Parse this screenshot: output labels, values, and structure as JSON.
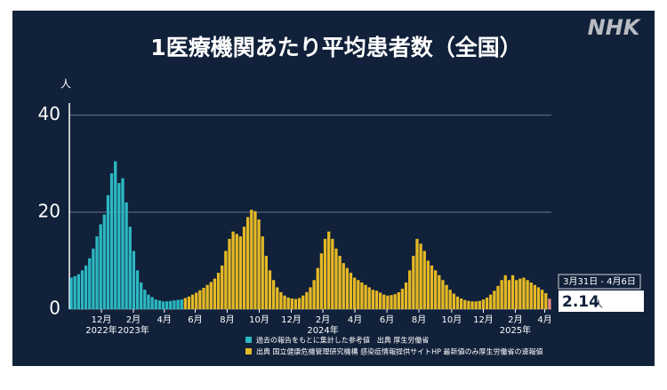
{
  "chart_data": {
    "type": "bar",
    "title": "1医療機関あたり平均患者数（全国）",
    "logo": "NHK",
    "y_unit": "人",
    "x": [
      0,
      1,
      2,
      3,
      4,
      5,
      6,
      7,
      8,
      9,
      10,
      11,
      12,
      13,
      14,
      15,
      16,
      17,
      18,
      19,
      20,
      21,
      22,
      23,
      24,
      25,
      26,
      27,
      28,
      29,
      30,
      31,
      32,
      33,
      34,
      35,
      36,
      37,
      38,
      39,
      40,
      41,
      42,
      43,
      44,
      45,
      46,
      47,
      48,
      49,
      50,
      51,
      52,
      53,
      54,
      55,
      56,
      57,
      58,
      59,
      60,
      61,
      62,
      63,
      64,
      65,
      66,
      67,
      68,
      69,
      70,
      71,
      72,
      73,
      74,
      75,
      76,
      77,
      78,
      79,
      80,
      81,
      82,
      83,
      84,
      85,
      86,
      87,
      88,
      89,
      90,
      91,
      92,
      93,
      94,
      95,
      96,
      97,
      98,
      99,
      100,
      101,
      102,
      103,
      104,
      105,
      106,
      107,
      108,
      109,
      110,
      111,
      112,
      113,
      114,
      115,
      116,
      117,
      118,
      119,
      120,
      121,
      122,
      123,
      124,
      125,
      126,
      127,
      128,
      129,
      130
    ],
    "xlim": [
      -0.5,
      130.5
    ],
    "xticks": [
      {
        "value": 8.2,
        "label": "12月"
      },
      {
        "value": 16.9,
        "label": "2月"
      },
      {
        "value": 25.3,
        "label": "4月"
      },
      {
        "value": 33.7,
        "label": "6月"
      },
      {
        "value": 42.4,
        "label": "8月"
      },
      {
        "value": 51.1,
        "label": "10月"
      },
      {
        "value": 59.8,
        "label": "12月"
      },
      {
        "value": 68.4,
        "label": "2月"
      },
      {
        "value": 77.1,
        "label": "4月"
      },
      {
        "value": 85.8,
        "label": "6月"
      },
      {
        "value": 94.5,
        "label": "8月"
      },
      {
        "value": 103.4,
        "label": "10月"
      },
      {
        "value": 112,
        "label": "12月"
      },
      {
        "value": 120.7,
        "label": "2月"
      },
      {
        "value": 128.7,
        "label": "4月"
      }
    ],
    "year_ticks": [
      {
        "value": 8.2,
        "label": "2022年"
      },
      {
        "value": 16.9,
        "label": "2023年"
      },
      {
        "value": 68.4,
        "label": "2024年"
      },
      {
        "value": 120.7,
        "label": "2025年"
      }
    ],
    "ylim": [
      0,
      42.5
    ],
    "yticks": [
      0,
      20,
      40
    ],
    "grid": true,
    "series": [
      {
        "name": "過去の報告をもとに集計した参考値　出典 厚生労働省",
        "color": "#2cb8c2",
        "values": [
          6.5,
          6.8,
          7.2,
          8,
          9,
          10.5,
          12.5,
          15,
          17.5,
          19.5,
          23.5,
          28,
          30.5,
          26,
          27,
          22,
          17,
          12,
          8,
          5.5,
          4,
          3,
          2.5,
          2,
          1.8,
          1.6,
          1.6,
          1.7,
          1.8,
          1.9,
          2,
          null,
          null,
          null,
          null,
          null,
          null,
          null,
          null,
          null,
          null,
          null,
          null,
          null,
          null,
          null,
          null,
          null,
          null,
          null,
          null,
          null,
          null,
          null,
          null,
          null,
          null,
          null,
          null,
          null,
          null,
          null,
          null,
          null,
          null,
          null,
          null,
          null,
          null,
          null,
          null,
          null,
          null,
          null,
          null,
          null,
          null,
          null,
          null,
          null,
          null,
          null,
          null,
          null,
          null,
          null,
          null,
          null,
          null,
          null,
          null,
          null,
          null,
          null,
          null,
          null,
          null,
          null,
          null,
          null,
          null,
          null,
          null,
          null,
          null,
          null,
          null,
          null,
          null,
          null,
          null,
          null,
          null,
          null,
          null,
          null,
          null,
          null,
          null,
          null,
          null,
          null,
          null,
          null,
          null,
          null,
          null,
          null,
          null,
          null,
          null
        ]
      },
      {
        "name": "出典 国立健康危機管理研究機構 感染症情報提供サイトHP 最新値のみ厚生労働省の速報値",
        "color": "#e6b925",
        "values": [
          null,
          null,
          null,
          null,
          null,
          null,
          null,
          null,
          null,
          null,
          null,
          null,
          null,
          null,
          null,
          null,
          null,
          null,
          null,
          null,
          null,
          null,
          null,
          null,
          null,
          null,
          null,
          null,
          null,
          null,
          null,
          2.3,
          2.6,
          3,
          3.4,
          3.9,
          4.4,
          5,
          5.6,
          6.3,
          7.5,
          9,
          12,
          14.5,
          16,
          15.5,
          15,
          17,
          19,
          20.5,
          20.2,
          18.5,
          15,
          11,
          8,
          6,
          4.5,
          3.5,
          2.8,
          2.4,
          2.2,
          2.1,
          2.3,
          2.8,
          3.5,
          4.5,
          6,
          8.5,
          11.5,
          14.5,
          16,
          14.5,
          12.5,
          11,
          9.5,
          8.5,
          7.5,
          6.5,
          6,
          5.5,
          5,
          4.5,
          4,
          3.8,
          3.4,
          3,
          2.8,
          2.9,
          3.1,
          3.5,
          4.2,
          5.5,
          8,
          11,
          14.5,
          13.5,
          12,
          10,
          9,
          8,
          7,
          6,
          5,
          4,
          3.2,
          2.6,
          2.2,
          1.9,
          1.7,
          1.6,
          1.6,
          1.7,
          2,
          2.4,
          3,
          3.8,
          4.8,
          6,
          7,
          6,
          7,
          6,
          6.3,
          6.5,
          6,
          5.5,
          5,
          4.5,
          4,
          3.3,
          2.14
        ]
      }
    ],
    "latest_color": "#e98a86",
    "callout": {
      "period": "3月31日 - 4月6日",
      "unit": "人"
    }
  }
}
